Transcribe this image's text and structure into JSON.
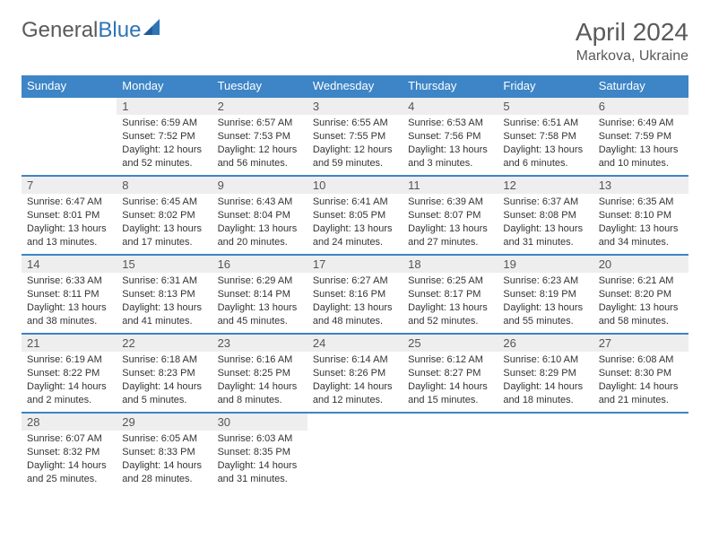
{
  "brand": {
    "part1": "General",
    "part2": "Blue"
  },
  "title": "April 2024",
  "location": "Markova, Ukraine",
  "colors": {
    "header_bg": "#3d85c6",
    "header_text": "#ffffff",
    "daynum_bg": "#eeeeee",
    "border": "#3d85c6",
    "text": "#333333",
    "brand_gray": "#5a5a5a",
    "brand_blue": "#2e75b6"
  },
  "day_names": [
    "Sunday",
    "Monday",
    "Tuesday",
    "Wednesday",
    "Thursday",
    "Friday",
    "Saturday"
  ],
  "weeks": [
    [
      null,
      {
        "n": "1",
        "sr": "Sunrise: 6:59 AM",
        "ss": "Sunset: 7:52 PM",
        "dl": "Daylight: 12 hours and 52 minutes."
      },
      {
        "n": "2",
        "sr": "Sunrise: 6:57 AM",
        "ss": "Sunset: 7:53 PM",
        "dl": "Daylight: 12 hours and 56 minutes."
      },
      {
        "n": "3",
        "sr": "Sunrise: 6:55 AM",
        "ss": "Sunset: 7:55 PM",
        "dl": "Daylight: 12 hours and 59 minutes."
      },
      {
        "n": "4",
        "sr": "Sunrise: 6:53 AM",
        "ss": "Sunset: 7:56 PM",
        "dl": "Daylight: 13 hours and 3 minutes."
      },
      {
        "n": "5",
        "sr": "Sunrise: 6:51 AM",
        "ss": "Sunset: 7:58 PM",
        "dl": "Daylight: 13 hours and 6 minutes."
      },
      {
        "n": "6",
        "sr": "Sunrise: 6:49 AM",
        "ss": "Sunset: 7:59 PM",
        "dl": "Daylight: 13 hours and 10 minutes."
      }
    ],
    [
      {
        "n": "7",
        "sr": "Sunrise: 6:47 AM",
        "ss": "Sunset: 8:01 PM",
        "dl": "Daylight: 13 hours and 13 minutes."
      },
      {
        "n": "8",
        "sr": "Sunrise: 6:45 AM",
        "ss": "Sunset: 8:02 PM",
        "dl": "Daylight: 13 hours and 17 minutes."
      },
      {
        "n": "9",
        "sr": "Sunrise: 6:43 AM",
        "ss": "Sunset: 8:04 PM",
        "dl": "Daylight: 13 hours and 20 minutes."
      },
      {
        "n": "10",
        "sr": "Sunrise: 6:41 AM",
        "ss": "Sunset: 8:05 PM",
        "dl": "Daylight: 13 hours and 24 minutes."
      },
      {
        "n": "11",
        "sr": "Sunrise: 6:39 AM",
        "ss": "Sunset: 8:07 PM",
        "dl": "Daylight: 13 hours and 27 minutes."
      },
      {
        "n": "12",
        "sr": "Sunrise: 6:37 AM",
        "ss": "Sunset: 8:08 PM",
        "dl": "Daylight: 13 hours and 31 minutes."
      },
      {
        "n": "13",
        "sr": "Sunrise: 6:35 AM",
        "ss": "Sunset: 8:10 PM",
        "dl": "Daylight: 13 hours and 34 minutes."
      }
    ],
    [
      {
        "n": "14",
        "sr": "Sunrise: 6:33 AM",
        "ss": "Sunset: 8:11 PM",
        "dl": "Daylight: 13 hours and 38 minutes."
      },
      {
        "n": "15",
        "sr": "Sunrise: 6:31 AM",
        "ss": "Sunset: 8:13 PM",
        "dl": "Daylight: 13 hours and 41 minutes."
      },
      {
        "n": "16",
        "sr": "Sunrise: 6:29 AM",
        "ss": "Sunset: 8:14 PM",
        "dl": "Daylight: 13 hours and 45 minutes."
      },
      {
        "n": "17",
        "sr": "Sunrise: 6:27 AM",
        "ss": "Sunset: 8:16 PM",
        "dl": "Daylight: 13 hours and 48 minutes."
      },
      {
        "n": "18",
        "sr": "Sunrise: 6:25 AM",
        "ss": "Sunset: 8:17 PM",
        "dl": "Daylight: 13 hours and 52 minutes."
      },
      {
        "n": "19",
        "sr": "Sunrise: 6:23 AM",
        "ss": "Sunset: 8:19 PM",
        "dl": "Daylight: 13 hours and 55 minutes."
      },
      {
        "n": "20",
        "sr": "Sunrise: 6:21 AM",
        "ss": "Sunset: 8:20 PM",
        "dl": "Daylight: 13 hours and 58 minutes."
      }
    ],
    [
      {
        "n": "21",
        "sr": "Sunrise: 6:19 AM",
        "ss": "Sunset: 8:22 PM",
        "dl": "Daylight: 14 hours and 2 minutes."
      },
      {
        "n": "22",
        "sr": "Sunrise: 6:18 AM",
        "ss": "Sunset: 8:23 PM",
        "dl": "Daylight: 14 hours and 5 minutes."
      },
      {
        "n": "23",
        "sr": "Sunrise: 6:16 AM",
        "ss": "Sunset: 8:25 PM",
        "dl": "Daylight: 14 hours and 8 minutes."
      },
      {
        "n": "24",
        "sr": "Sunrise: 6:14 AM",
        "ss": "Sunset: 8:26 PM",
        "dl": "Daylight: 14 hours and 12 minutes."
      },
      {
        "n": "25",
        "sr": "Sunrise: 6:12 AM",
        "ss": "Sunset: 8:27 PM",
        "dl": "Daylight: 14 hours and 15 minutes."
      },
      {
        "n": "26",
        "sr": "Sunrise: 6:10 AM",
        "ss": "Sunset: 8:29 PM",
        "dl": "Daylight: 14 hours and 18 minutes."
      },
      {
        "n": "27",
        "sr": "Sunrise: 6:08 AM",
        "ss": "Sunset: 8:30 PM",
        "dl": "Daylight: 14 hours and 21 minutes."
      }
    ],
    [
      {
        "n": "28",
        "sr": "Sunrise: 6:07 AM",
        "ss": "Sunset: 8:32 PM",
        "dl": "Daylight: 14 hours and 25 minutes."
      },
      {
        "n": "29",
        "sr": "Sunrise: 6:05 AM",
        "ss": "Sunset: 8:33 PM",
        "dl": "Daylight: 14 hours and 28 minutes."
      },
      {
        "n": "30",
        "sr": "Sunrise: 6:03 AM",
        "ss": "Sunset: 8:35 PM",
        "dl": "Daylight: 14 hours and 31 minutes."
      },
      null,
      null,
      null,
      null
    ]
  ]
}
